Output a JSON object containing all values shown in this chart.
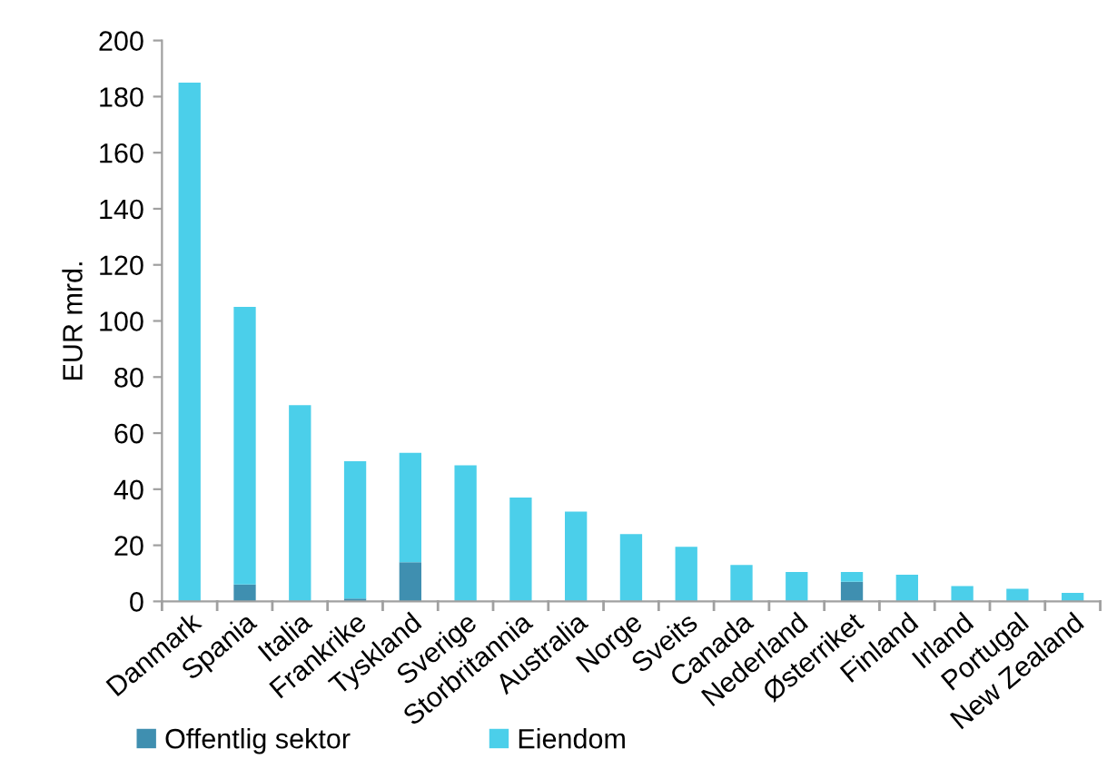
{
  "chart_data": {
    "type": "bar",
    "stacked": true,
    "ylabel": "EUR mrd.",
    "categories": [
      "Danmark",
      "Spania",
      "Italia",
      "Frankrike",
      "Tyskland",
      "Sverige",
      "Storbritannia",
      "Australia",
      "Norge",
      "Sveits",
      "Canada",
      "Nederland",
      "Østerriket",
      "Finland",
      "Irland",
      "Portugal",
      "New Zealand"
    ],
    "series": [
      {
        "name": "Offentlig sektor",
        "color": "#3f8fb0",
        "values": [
          0,
          6,
          0,
          1,
          14,
          0,
          0,
          0,
          0,
          0,
          0,
          0,
          7,
          0,
          0,
          0,
          0
        ]
      },
      {
        "name": "Eiendom",
        "color": "#4bcfea",
        "values": [
          185,
          99,
          70,
          49,
          39,
          48.5,
          37,
          32,
          24,
          19.5,
          13,
          10.5,
          3.5,
          9.5,
          5.5,
          4.5,
          3
        ]
      }
    ],
    "ylim": [
      0,
      200
    ],
    "yticks": [
      0,
      20,
      40,
      60,
      80,
      100,
      120,
      140,
      160,
      180,
      200
    ],
    "grid": false,
    "legend": "bottom left"
  }
}
